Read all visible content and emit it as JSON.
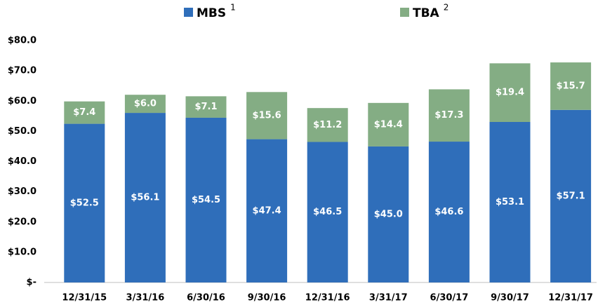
{
  "chart_data": {
    "type": "stacked_bar",
    "categories": [
      "12/31/15",
      "3/31/16",
      "6/30/16",
      "9/30/16",
      "12/31/16",
      "3/31/17",
      "6/30/17",
      "9/30/17",
      "12/31/17"
    ],
    "series": [
      {
        "name": "MBS",
        "note": "1",
        "color": "#2f6eba",
        "values": [
          52.5,
          56.1,
          54.5,
          47.4,
          46.5,
          45.0,
          46.6,
          53.1,
          57.1
        ],
        "value_labels": [
          "$52.5",
          "$56.1",
          "$54.5",
          "$47.4",
          "$46.5",
          "$45.0",
          "$46.6",
          "$53.1",
          "$57.1"
        ]
      },
      {
        "name": "TBA",
        "note": "2",
        "color": "#84ad84",
        "values": [
          7.4,
          6.0,
          7.1,
          15.6,
          11.2,
          14.4,
          17.3,
          19.4,
          15.7
        ],
        "value_labels": [
          "$7.4",
          "$6.0",
          "$7.1",
          "$15.6",
          "$11.2",
          "$14.4",
          "$17.3",
          "$19.4",
          "$15.7"
        ]
      }
    ],
    "ylim": [
      0,
      80
    ],
    "yticks": [
      {
        "value": 0,
        "label": "$-"
      },
      {
        "value": 10,
        "label": "$10.0"
      },
      {
        "value": 20,
        "label": "$20.0"
      },
      {
        "value": 30,
        "label": "$30.0"
      },
      {
        "value": 40,
        "label": "$40.0"
      },
      {
        "value": 50,
        "label": "$50.0"
      },
      {
        "value": 60,
        "label": "$60.0"
      },
      {
        "value": 70,
        "label": "$70.0"
      },
      {
        "value": 80,
        "label": "$80.0"
      }
    ],
    "legend": "top"
  }
}
